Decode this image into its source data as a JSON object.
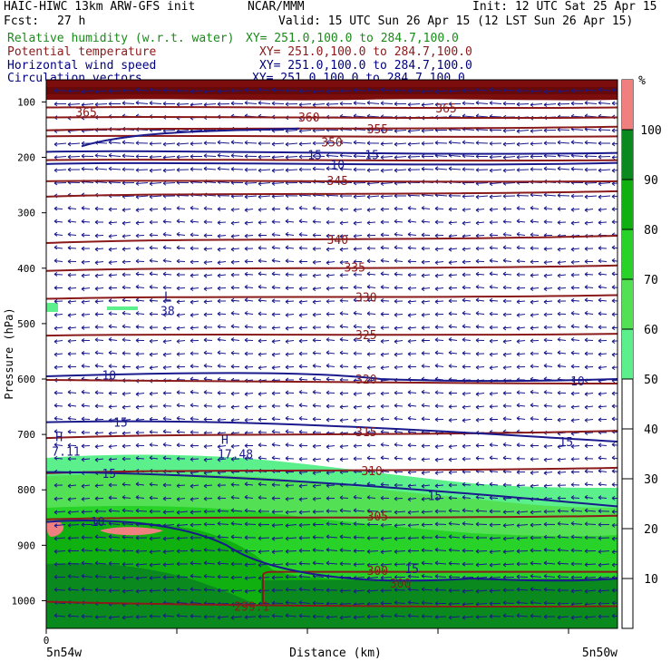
{
  "header": {
    "model": "HAIC-HIWC 13km ARW-GFS init",
    "org": "NCAR/MMM",
    "init": "Init: 12 UTC Sat 25 Apr 15",
    "fcst_label": "Fcst:",
    "fcst_value": "27 h",
    "valid": "Valid: 15 UTC Sun 26 Apr 15 (12 LST Sun 26 Apr 15)"
  },
  "fields": [
    {
      "name": "Relative humidity (w.r.t. water)",
      "xy": "XY= 251.0,100.0 to 284.7,100.0",
      "color": "#1a8a1a"
    },
    {
      "name": "Potential temperature",
      "xy": "XY= 251.0,100.0 to 284.7,100.0",
      "color": "#8b1a1a"
    },
    {
      "name": "Horizontal wind speed",
      "xy": "XY= 251.0,100.0 to 284.7,100.0",
      "color": "#000080"
    },
    {
      "name": "Circulation vectors",
      "xy": "XY= 251.0,100.0 to 284.7,100.0",
      "color": "#000080"
    }
  ],
  "chart_data": {
    "type": "cross-section",
    "xlabel": "Distance (km)",
    "ylabel": "Pressure (hPa)",
    "x_start_label": "5n54w",
    "x_end_label": "5n50w",
    "x_tick_first": "0",
    "yticks": [
      100,
      200,
      300,
      400,
      500,
      600,
      700,
      800,
      900,
      1000
    ],
    "ylim": [
      1050,
      60
    ],
    "colorbar": {
      "unit": "%",
      "ticks": [
        10,
        20,
        30,
        40,
        50,
        60,
        70,
        80,
        90,
        100
      ],
      "bands": [
        {
          "from": 50,
          "to": 60,
          "color": "#5cf08c"
        },
        {
          "from": 60,
          "to": 70,
          "color": "#54e054"
        },
        {
          "from": 70,
          "to": 80,
          "color": "#28d228"
        },
        {
          "from": 80,
          "to": 90,
          "color": "#10b010"
        },
        {
          "from": 90,
          "to": 100,
          "color": "#0a8a1e"
        },
        {
          "from": 100,
          "to": 110,
          "color": "#f08080"
        }
      ]
    },
    "theta_labels": [
      {
        "text": "365",
        "x": 0.07,
        "p": 118
      },
      {
        "text": "360",
        "x": 0.46,
        "p": 127
      },
      {
        "text": "365",
        "x": 0.7,
        "p": 111
      },
      {
        "text": "355",
        "x": 0.58,
        "p": 148
      },
      {
        "text": "350",
        "x": 0.5,
        "p": 172
      },
      {
        "text": "345",
        "x": 0.51,
        "p": 242
      },
      {
        "text": "340",
        "x": 0.51,
        "p": 348
      },
      {
        "text": "335",
        "x": 0.54,
        "p": 398
      },
      {
        "text": "330",
        "x": 0.56,
        "p": 452
      },
      {
        "text": "325",
        "x": 0.56,
        "p": 520
      },
      {
        "text": "320",
        "x": 0.56,
        "p": 600
      },
      {
        "text": "315",
        "x": 0.56,
        "p": 695
      },
      {
        "text": "310",
        "x": 0.57,
        "p": 765
      },
      {
        "text": "305",
        "x": 0.58,
        "p": 847
      },
      {
        "text": "300",
        "x": 0.58,
        "p": 945
      },
      {
        "text": "300",
        "x": 0.62,
        "p": 968
      },
      {
        "text": "299.1",
        "x": 0.36,
        "p": 1010
      }
    ],
    "wind_labels": [
      {
        "text": "15",
        "x": 0.47,
        "p": 195
      },
      {
        "text": "15",
        "x": 0.57,
        "p": 195
      },
      {
        "text": "10",
        "x": 0.51,
        "p": 213
      },
      {
        "text": "10",
        "x": 0.11,
        "p": 593
      },
      {
        "text": "10",
        "x": 0.93,
        "p": 603
      },
      {
        "text": "15",
        "x": 0.13,
        "p": 678
      },
      {
        "text": "15",
        "x": 0.91,
        "p": 713
      },
      {
        "text": "15",
        "x": 0.11,
        "p": 770
      },
      {
        "text": "15",
        "x": 0.68,
        "p": 810
      },
      {
        "text": "10",
        "x": 0.09,
        "p": 857
      },
      {
        "text": "15",
        "x": 0.64,
        "p": 942
      }
    ],
    "extrema": [
      {
        "symbol": "L",
        "value": "38",
        "x": 0.2,
        "p": 468
      },
      {
        "symbol": "H",
        "value": "7.11",
        "x": 0.01,
        "p": 722
      },
      {
        "symbol": "H",
        "value": "17.48",
        "x": 0.3,
        "p": 727
      }
    ]
  }
}
